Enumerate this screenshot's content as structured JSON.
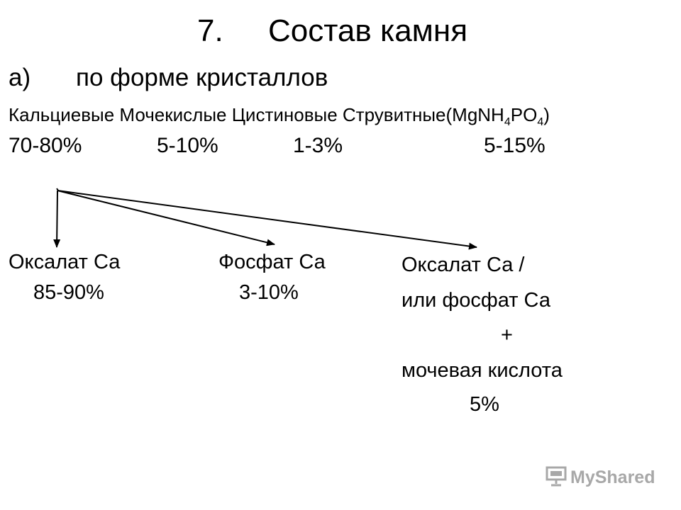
{
  "slide": {
    "title_num": "7.",
    "title_text": "Состав камня",
    "section_label": "а)",
    "section_text": "по форме кристаллов"
  },
  "stone_types": {
    "calcium": "Кальциевые",
    "uric": "Мочекислые",
    "cystine": "Цистиновые",
    "struvite": "Струвитные(MgNH",
    "sub_4a": "4",
    "po": "PO",
    "sub_4b": "4",
    "close_paren": ")"
  },
  "percentages": {
    "calcium": "70-80%",
    "uric": "5-10%",
    "cystine": "1-3%",
    "struvite": "5-15%"
  },
  "branches": {
    "oxalate_name": "Оксалат Са",
    "oxalate_pct": "85-90%",
    "phosphate_name": "Фосфат Са",
    "phosphate_pct": "3-10%",
    "mixed_line1": "Оксалат Са /",
    "mixed_line2": "или фосфат Са",
    "mixed_plus": "+",
    "mixed_line3": "мочевая кислота",
    "mixed_pct": "5%"
  },
  "watermark": {
    "text": "MyShared",
    "icon": "projector-screen-icon",
    "color": "#a8a8a8"
  }
}
